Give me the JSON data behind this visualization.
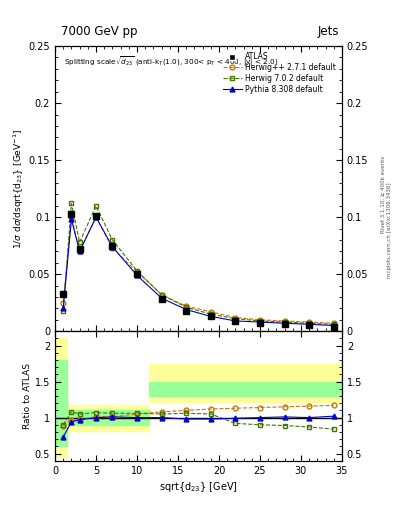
{
  "title_top_left": "7000 GeV pp",
  "title_top_right": "Jets",
  "subtitle": "Splitting scale $\\sqrt{d_{23}}$ (anti-k$_T$(1.0), 300< p$_T$ < 400, |y| < 2.0)",
  "xlabel": "sqrt(d$_{23}$) [GeV]",
  "ylabel_main": "1/$\\sigma$ d$\\sigma$/dsqrt(d$_{23}$) [GeV$^{-1}$]",
  "ylabel_ratio": "Ratio to ATLAS",
  "annotation1": "Rivet 3.1.10, ≥ 400k events",
  "annotation2": "mcplots.cern.ch [arXiv:1306.3436]",
  "xlim": [
    0,
    35
  ],
  "ylim_main": [
    0,
    0.25
  ],
  "ylim_ratio": [
    0.4,
    2.2
  ],
  "yticks_main": [
    0,
    0.05,
    0.1,
    0.15,
    0.2,
    0.25
  ],
  "ytick_labels_main": [
    "0",
    "0.05",
    "0.1",
    "0.15",
    "0.2",
    "0.25"
  ],
  "yticks_ratio": [
    0.5,
    1.0,
    1.5,
    2.0
  ],
  "ytick_labels_ratio": [
    "0.5",
    "1",
    "1.5",
    "2"
  ],
  "xticks": [
    0,
    5,
    10,
    15,
    20,
    25,
    30,
    35
  ],
  "x_atlas": [
    1.0,
    2.0,
    3.0,
    5.0,
    7.0,
    10.0,
    13.0,
    16.0,
    19.0,
    22.0,
    25.0,
    28.0,
    31.0,
    34.0
  ],
  "y_atlas": [
    0.033,
    0.103,
    0.072,
    0.101,
    0.075,
    0.05,
    0.028,
    0.018,
    0.013,
    0.009,
    0.007,
    0.006,
    0.005,
    0.004
  ],
  "x_herwig271": [
    1.0,
    2.0,
    3.0,
    5.0,
    7.0,
    10.0,
    13.0,
    16.0,
    19.0,
    22.0,
    25.0,
    28.0,
    31.0,
    34.0
  ],
  "y_herwig271": [
    0.025,
    0.1,
    0.07,
    0.1,
    0.073,
    0.052,
    0.032,
    0.022,
    0.017,
    0.012,
    0.01,
    0.009,
    0.008,
    0.007
  ],
  "x_herwig702": [
    1.0,
    2.0,
    3.0,
    5.0,
    7.0,
    10.0,
    13.0,
    16.0,
    19.0,
    22.0,
    25.0,
    28.0,
    31.0,
    34.0
  ],
  "y_herwig702": [
    0.018,
    0.112,
    0.078,
    0.11,
    0.08,
    0.053,
    0.032,
    0.021,
    0.015,
    0.011,
    0.009,
    0.008,
    0.007,
    0.006
  ],
  "x_pythia": [
    1.0,
    2.0,
    3.0,
    5.0,
    7.0,
    10.0,
    13.0,
    16.0,
    19.0,
    22.0,
    25.0,
    28.0,
    31.0,
    34.0
  ],
  "y_pythia": [
    0.02,
    0.098,
    0.07,
    0.1,
    0.074,
    0.049,
    0.029,
    0.019,
    0.013,
    0.009,
    0.008,
    0.007,
    0.006,
    0.005
  ],
  "ratio_herwig271": [
    0.88,
    0.97,
    0.97,
    1.01,
    1.01,
    1.05,
    1.08,
    1.1,
    1.12,
    1.13,
    1.14,
    1.15,
    1.16,
    1.17
  ],
  "ratio_herwig702": [
    0.9,
    1.08,
    1.05,
    1.07,
    1.06,
    1.06,
    1.05,
    1.06,
    1.05,
    0.92,
    0.9,
    0.89,
    0.87,
    0.84
  ],
  "ratio_pythia": [
    0.73,
    0.94,
    0.97,
    1.0,
    1.01,
    1.0,
    1.0,
    0.98,
    0.98,
    0.99,
    1.0,
    1.01,
    1.0,
    1.02
  ],
  "band_x_edges": [
    0.0,
    1.5,
    2.5,
    4.0,
    6.0,
    8.5,
    11.5,
    14.5,
    17.5,
    20.5,
    23.5,
    26.5,
    29.5,
    32.5,
    35.0
  ],
  "band_yellow_lo": [
    0.45,
    0.82,
    0.82,
    0.82,
    0.82,
    0.82,
    1.22,
    1.22,
    1.22,
    1.22,
    1.22,
    1.22,
    1.22,
    1.22
  ],
  "band_yellow_hi": [
    2.1,
    1.18,
    1.18,
    1.18,
    1.18,
    1.18,
    1.75,
    1.75,
    1.75,
    1.75,
    1.75,
    1.75,
    1.75,
    1.75
  ],
  "band_green_lo": [
    0.6,
    0.9,
    0.9,
    0.9,
    0.9,
    0.9,
    1.3,
    1.3,
    1.3,
    1.3,
    1.3,
    1.3,
    1.3,
    1.3
  ],
  "band_green_hi": [
    1.8,
    1.1,
    1.1,
    1.1,
    1.1,
    1.1,
    1.5,
    1.5,
    1.5,
    1.5,
    1.5,
    1.5,
    1.5,
    1.5
  ],
  "color_atlas": "#000000",
  "color_herwig271": "#cc7700",
  "color_herwig702": "#447700",
  "color_pythia": "#0000cc",
  "color_yellow": "#ffff99",
  "color_green": "#99ff99",
  "bg_color": "#ffffff"
}
